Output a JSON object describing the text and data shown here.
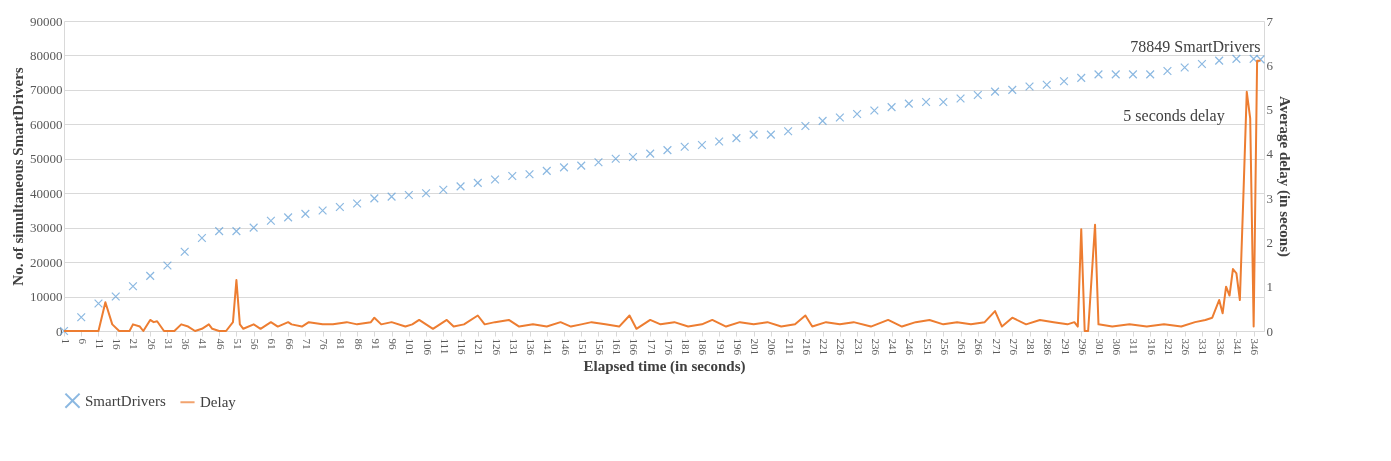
{
  "chart_data": {
    "type": "scatter",
    "xlabel": "Elapsed time (in seconds)",
    "ylabel": "No. of simultaneous  SmartDrivers",
    "y2label": "Average delay  (in secons)",
    "xlim": [
      1,
      349
    ],
    "xticks": [
      1,
      6,
      11,
      16,
      21,
      26,
      31,
      36,
      41,
      46,
      51,
      56,
      61,
      66,
      71,
      76,
      81,
      86,
      91,
      96,
      101,
      106,
      111,
      116,
      121,
      126,
      131,
      136,
      141,
      146,
      151,
      156,
      161,
      166,
      171,
      176,
      181,
      186,
      191,
      196,
      201,
      206,
      211,
      216,
      221,
      226,
      231,
      236,
      241,
      246,
      251,
      256,
      261,
      266,
      271,
      276,
      281,
      286,
      291,
      296,
      301,
      306,
      311,
      316,
      321,
      326,
      331,
      336,
      341,
      346
    ],
    "ylim": [
      0,
      90000
    ],
    "yticks": [
      0,
      10000,
      20000,
      30000,
      40000,
      50000,
      60000,
      70000,
      80000,
      90000
    ],
    "y2lim": [
      0,
      7
    ],
    "y2ticks": [
      0,
      1,
      2,
      3,
      4,
      5,
      6,
      7
    ],
    "grid": "y",
    "legend": "bottom",
    "series": [
      {
        "name": "SmartDrivers",
        "marker": "cross",
        "color": "#5b9bd5",
        "x": [
          1,
          6,
          11,
          16,
          21,
          26,
          31,
          36,
          41,
          46,
          51,
          56,
          61,
          66,
          71,
          76,
          81,
          86,
          91,
          96,
          101,
          106,
          111,
          116,
          121,
          126,
          131,
          136,
          141,
          146,
          151,
          156,
          161,
          166,
          171,
          176,
          181,
          186,
          191,
          196,
          201,
          206,
          211,
          216,
          221,
          226,
          231,
          236,
          241,
          246,
          251,
          256,
          261,
          266,
          271,
          276,
          281,
          286,
          291,
          296,
          301,
          306,
          311,
          316,
          321,
          326,
          331,
          336,
          341,
          346,
          348
        ],
        "values": [
          0,
          4000,
          8000,
          10000,
          13000,
          16000,
          19000,
          23000,
          27000,
          29000,
          29000,
          30000,
          32000,
          33000,
          34000,
          35000,
          36000,
          37000,
          38500,
          39000,
          39500,
          40000,
          41000,
          42000,
          43000,
          44000,
          45000,
          45500,
          46500,
          47500,
          48000,
          49000,
          50000,
          50500,
          51500,
          52500,
          53500,
          54000,
          55000,
          56000,
          57000,
          57000,
          58000,
          59500,
          61000,
          62000,
          63000,
          64000,
          65000,
          66000,
          66500,
          66500,
          67500,
          68500,
          69500,
          70000,
          71000,
          71500,
          72500,
          73500,
          74500,
          74500,
          74500,
          74500,
          75500,
          76500,
          77500,
          78500,
          79000,
          79000,
          78849
        ]
      },
      {
        "name": "Delay",
        "type": "line",
        "axis": "y2",
        "color": "#ed7d31",
        "x": [
          1,
          11,
          13,
          15,
          17,
          20,
          21,
          23,
          24,
          26,
          27,
          28,
          30,
          33,
          35,
          37,
          39,
          41,
          43,
          44,
          46,
          48,
          50,
          51,
          52,
          53,
          56,
          58,
          61,
          63,
          66,
          67,
          70,
          72,
          76,
          79,
          83,
          86,
          90,
          91,
          93,
          96,
          100,
          102,
          104,
          108,
          112,
          114,
          117,
          121,
          123,
          126,
          130,
          133,
          137,
          141,
          145,
          148,
          151,
          154,
          158,
          162,
          165,
          167,
          171,
          174,
          178,
          182,
          186,
          189,
          193,
          197,
          201,
          205,
          209,
          213,
          216,
          218,
          222,
          226,
          230,
          235,
          240,
          244,
          248,
          252,
          256,
          260,
          264,
          268,
          271,
          273,
          276,
          280,
          284,
          288,
          292,
          294,
          295,
          296,
          297,
          298,
          300,
          301,
          305,
          310,
          315,
          320,
          325,
          329,
          332,
          334,
          336,
          337,
          338,
          339,
          340,
          341,
          342,
          343,
          344,
          345,
          346,
          347,
          348
        ],
        "values": [
          0,
          0,
          0.65,
          0.15,
          0,
          0,
          0.15,
          0.1,
          0,
          0.25,
          0.2,
          0.22,
          0,
          0,
          0.15,
          0.1,
          0,
          0.05,
          0.15,
          0.05,
          0,
          0,
          0.2,
          1.15,
          0.15,
          0.05,
          0.15,
          0.05,
          0.2,
          0.1,
          0.2,
          0.15,
          0.1,
          0.2,
          0.15,
          0.15,
          0.2,
          0.15,
          0.2,
          0.3,
          0.15,
          0.2,
          0.1,
          0.15,
          0.25,
          0.05,
          0.25,
          0.1,
          0.15,
          0.35,
          0.15,
          0.2,
          0.25,
          0.1,
          0.15,
          0.1,
          0.2,
          0.1,
          0.15,
          0.2,
          0.15,
          0.1,
          0.35,
          0.05,
          0.25,
          0.15,
          0.2,
          0.1,
          0.15,
          0.25,
          0.1,
          0.2,
          0.15,
          0.2,
          0.1,
          0.15,
          0.35,
          0.1,
          0.2,
          0.15,
          0.2,
          0.1,
          0.25,
          0.1,
          0.2,
          0.25,
          0.15,
          0.2,
          0.15,
          0.2,
          0.45,
          0.1,
          0.3,
          0.15,
          0.25,
          0.2,
          0.15,
          0.2,
          0.1,
          2.3,
          0,
          0,
          2.4,
          0.15,
          0.1,
          0.15,
          0.1,
          0.15,
          0.1,
          0.2,
          0.25,
          0.3,
          0.7,
          0.4,
          1.0,
          0.8,
          1.4,
          1.3,
          0.7,
          3.0,
          5.4,
          4.8,
          0.1,
          6.1,
          6.1
        ]
      }
    ],
    "annotations": [
      {
        "text": "78849 SmartDrivers",
        "x": 348,
        "y": 78849
      },
      "5 seconds delay"
    ]
  }
}
